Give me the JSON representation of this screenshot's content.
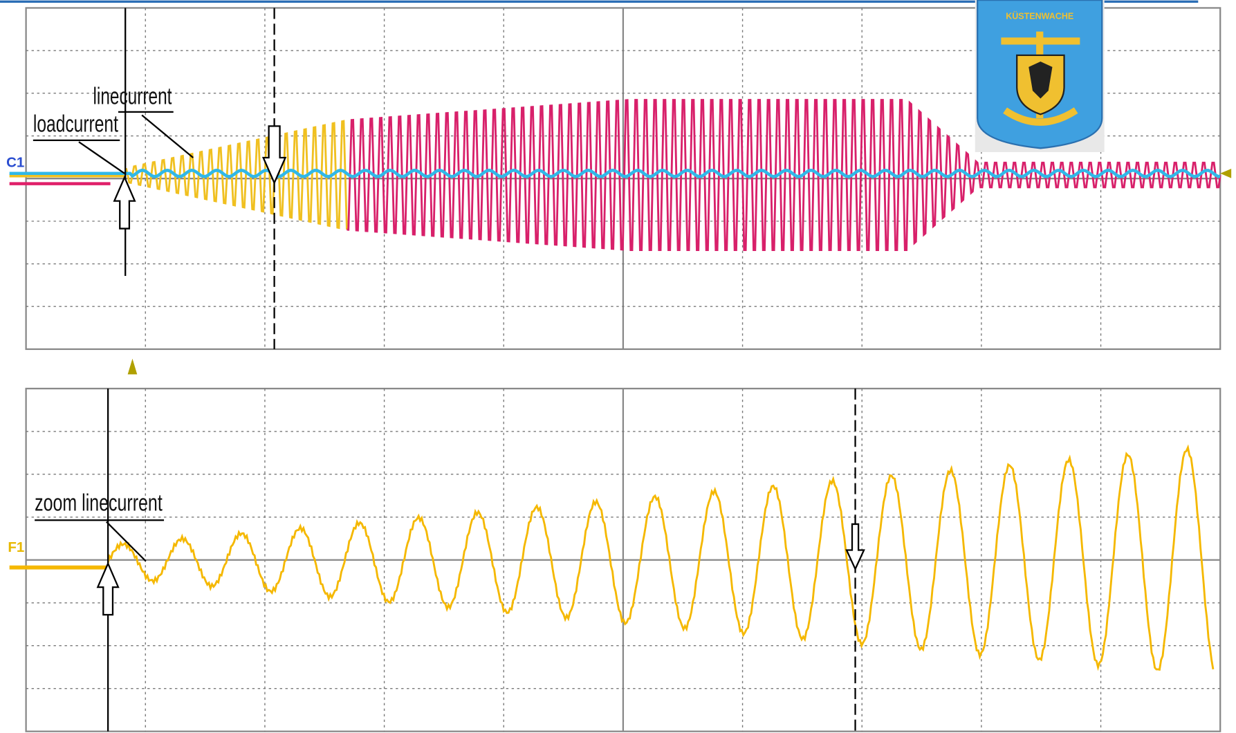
{
  "top_panel": {
    "channel": "C1",
    "annotations": [
      "linecurrent",
      "loadcurrent"
    ]
  },
  "bottom_panel": {
    "channel": "F1",
    "annotations": [
      "zoom linecurrent"
    ]
  },
  "badge": {
    "text": "KÜSTENWACHE"
  }
}
